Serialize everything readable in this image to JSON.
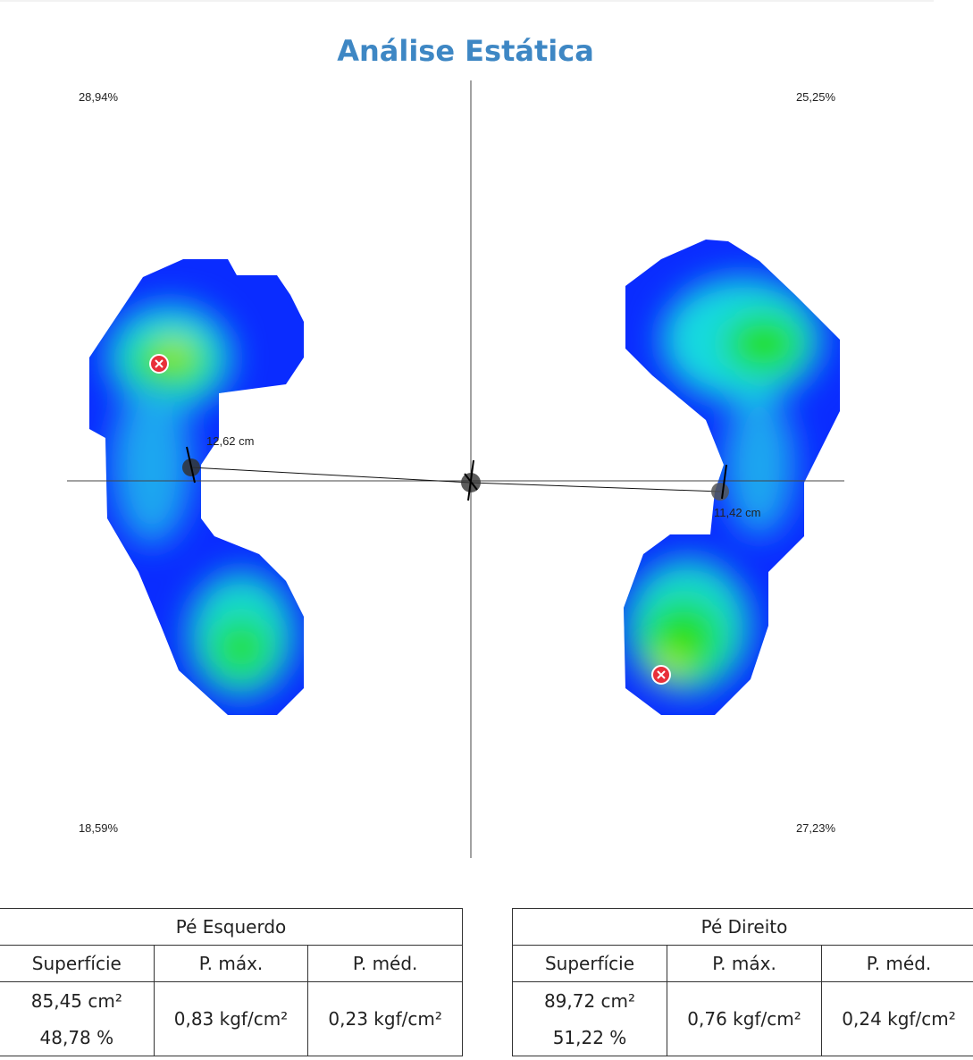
{
  "title": "Análise Estática",
  "quadrants": {
    "top_left": "28,94%",
    "top_right": "25,25%",
    "bottom_left": "18,59%",
    "bottom_right": "27,23%"
  },
  "distances": {
    "left": "12,62 cm",
    "right": "11,42 cm"
  },
  "tables": [
    {
      "title": "Pé Esquerdo",
      "headers": [
        "Superfície",
        "P. máx.",
        "P. méd."
      ],
      "surface": "85,45 cm²",
      "percent": "48,78 %",
      "max": "0,83 kgf/cm²",
      "mean": "0,23 kgf/cm²"
    },
    {
      "title": "Pé Direito",
      "headers": [
        "Superfície",
        "P. máx.",
        "P. méd."
      ],
      "surface": "89,72 cm²",
      "percent": "51,22 %",
      "max": "0,76 kgf/cm²",
      "mean": "0,24 kgf/cm²"
    }
  ]
}
